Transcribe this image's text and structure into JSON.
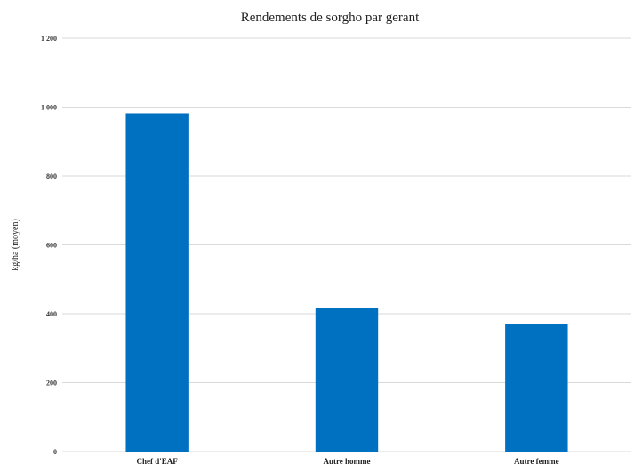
{
  "chart_data": {
    "type": "bar",
    "title": "Rendements de sorgho par gerant",
    "ylabel": "kg/ha (moyen)",
    "xlabel": "",
    "categories": [
      "Chef d'EAF",
      "Autre homme",
      "Autre femme"
    ],
    "values": [
      982,
      418,
      370
    ],
    "ylim": [
      0,
      1200
    ],
    "yticks": [
      0,
      200,
      400,
      600,
      800,
      1000,
      1200
    ],
    "ytick_labels": [
      "0",
      "200",
      "400",
      "600",
      "800",
      "1 000",
      "1 200"
    ],
    "grid": true,
    "legend": "none",
    "bar_color": "#0070C0"
  }
}
